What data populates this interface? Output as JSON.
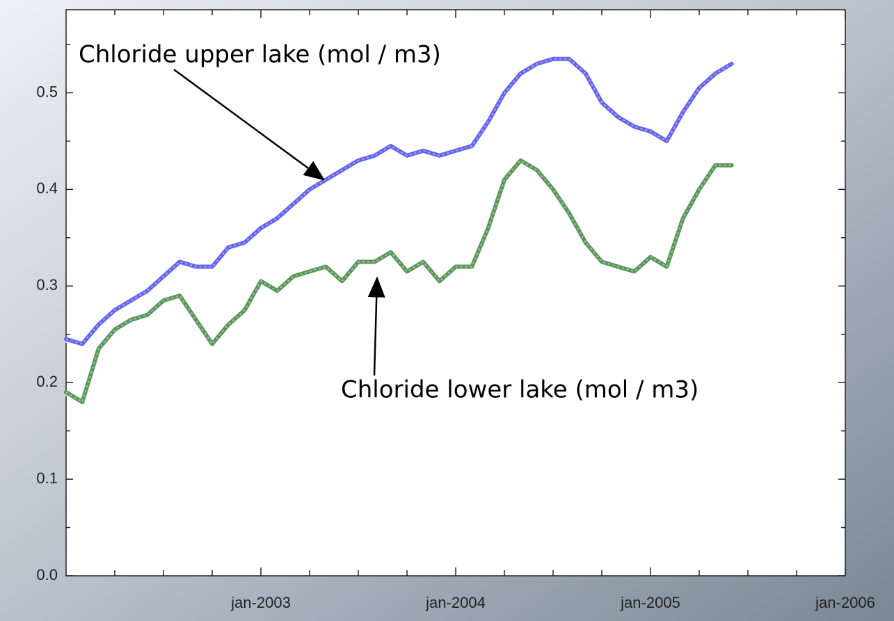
{
  "chart_data": {
    "type": "line",
    "x": [
      "2002-01",
      "2002-02",
      "2002-03",
      "2002-04",
      "2002-05",
      "2002-06",
      "2002-07",
      "2002-08",
      "2002-09",
      "2002-10",
      "2002-11",
      "2002-12",
      "2003-01",
      "2003-02",
      "2003-03",
      "2003-04",
      "2003-05",
      "2003-06",
      "2003-07",
      "2003-08",
      "2003-09",
      "2003-10",
      "2003-11",
      "2003-12",
      "2004-01",
      "2004-02",
      "2004-03",
      "2004-04",
      "2004-05",
      "2004-06",
      "2004-07",
      "2004-08",
      "2004-09",
      "2004-10",
      "2004-11",
      "2004-12",
      "2005-01",
      "2005-02",
      "2005-03",
      "2005-04",
      "2005-05",
      "2005-06"
    ],
    "series": [
      {
        "name": "Chloride upper lake (mol / m3)",
        "color": "#6464ee",
        "values": [
          0.245,
          0.24,
          0.26,
          0.275,
          0.285,
          0.295,
          0.31,
          0.325,
          0.32,
          0.32,
          0.34,
          0.345,
          0.36,
          0.37,
          0.385,
          0.4,
          0.41,
          0.42,
          0.43,
          0.435,
          0.445,
          0.435,
          0.44,
          0.435,
          0.44,
          0.445,
          0.47,
          0.5,
          0.52,
          0.53,
          0.535,
          0.535,
          0.52,
          0.49,
          0.475,
          0.465,
          0.46,
          0.45,
          0.48,
          0.505,
          0.52,
          0.53
        ]
      },
      {
        "name": "Chloride lower lake (mol / m3)",
        "color": "#5a965a",
        "values": [
          0.19,
          0.18,
          0.235,
          0.255,
          0.265,
          0.27,
          0.285,
          0.29,
          0.265,
          0.24,
          0.26,
          0.275,
          0.305,
          0.295,
          0.31,
          0.315,
          0.32,
          0.305,
          0.325,
          0.325,
          0.335,
          0.315,
          0.325,
          0.305,
          0.32,
          0.32,
          0.36,
          0.41,
          0.43,
          0.42,
          0.4,
          0.375,
          0.345,
          0.325,
          0.32,
          0.315,
          0.33,
          0.32,
          0.37,
          0.4,
          0.425,
          0.425
        ]
      }
    ],
    "xlim": [
      "2002-01",
      "2006-01"
    ],
    "xticks": [
      {
        "value": "2003-01",
        "label": "jan-2003"
      },
      {
        "value": "2004-01",
        "label": "jan-2004"
      },
      {
        "value": "2005-01",
        "label": "jan-2005"
      },
      {
        "value": "2006-01",
        "label": "jan-2006"
      }
    ],
    "xminor_ticks": [
      "2002-04",
      "2002-07",
      "2002-10",
      "2003-04",
      "2003-07",
      "2003-10",
      "2004-04",
      "2004-07",
      "2004-10",
      "2005-04",
      "2005-07",
      "2005-10"
    ],
    "ylim": [
      0,
      0.586
    ],
    "yticks": [
      {
        "value": 0,
        "label": "0.0"
      },
      0.1,
      0.2,
      0.3,
      0.4,
      0.5
    ],
    "yminor_ticks": [
      0.05,
      0.15,
      0.25,
      0.35,
      0.45,
      0.55
    ],
    "grid": false
  }
}
